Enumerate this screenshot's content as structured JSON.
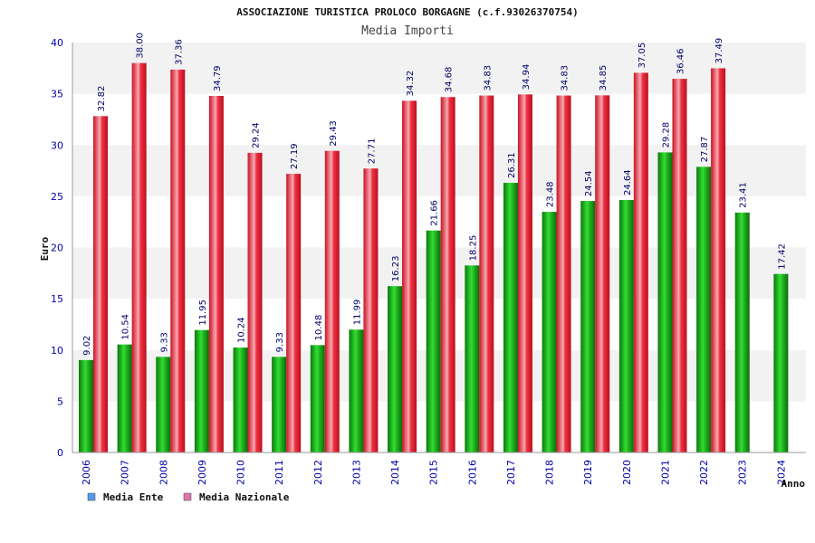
{
  "chart_data": {
    "type": "bar",
    "title": "ASSOCIAZIONE TURISTICA PROLOCO BORGAGNE (c.f.93026370754)",
    "subtitle": "Media Importi",
    "xlabel": "Anno",
    "ylabel": "Euro",
    "ylim": [
      0,
      40
    ],
    "yticks": [
      0,
      5,
      10,
      15,
      20,
      25,
      30,
      35,
      40
    ],
    "grid": true,
    "legend_position": "bottom-left",
    "categories": [
      "2006",
      "2007",
      "2008",
      "2009",
      "2010",
      "2011",
      "2012",
      "2013",
      "2014",
      "2015",
      "2016",
      "2017",
      "2018",
      "2019",
      "2020",
      "2021",
      "2022",
      "2023",
      "2024"
    ],
    "series": [
      {
        "name": "Media Ente",
        "color": "#22aa22",
        "legend_color": "#5599ee",
        "values": [
          9.02,
          10.54,
          9.33,
          11.95,
          10.24,
          9.33,
          10.48,
          11.99,
          16.23,
          21.66,
          18.25,
          26.31,
          23.48,
          24.54,
          24.64,
          29.28,
          27.87,
          23.41,
          17.42
        ],
        "labels": [
          "9.02",
          "10.54",
          "9.33",
          "11.95",
          "10.24",
          "9.33",
          "10.48",
          "11.99",
          "16.23",
          "21.66",
          "18.25",
          "26.31",
          "23.48",
          "24.54",
          "24.64",
          "29.28",
          "27.87",
          "23.41",
          "17.42"
        ]
      },
      {
        "name": "Media Nazionale",
        "color": "#ee2233",
        "legend_color": "#dd77aa",
        "values": [
          32.82,
          38.0,
          37.36,
          34.79,
          29.24,
          27.19,
          29.43,
          27.71,
          34.32,
          34.68,
          34.83,
          34.94,
          34.83,
          34.85,
          37.05,
          36.46,
          37.49,
          null,
          null
        ],
        "labels": [
          "32.82",
          "38.00",
          "37.36",
          "34.79",
          "29.24",
          "27.19",
          "29.43",
          "27.71",
          "34.32",
          "34.68",
          "34.83",
          "34.94",
          "34.83",
          "34.85",
          "37.05",
          "36.46",
          "37.49",
          null,
          null
        ]
      }
    ],
    "colors": {
      "title": "#111111",
      "subtitle": "#444444",
      "axis_text": "#0000aa",
      "band": "#f2f2f2",
      "value_label": "#000066"
    }
  }
}
